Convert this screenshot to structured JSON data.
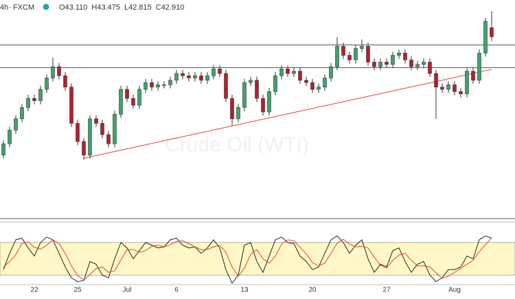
{
  "chart_data": [
    {
      "type": "candlestick",
      "interval": "4h",
      "source": "FXCM",
      "ohlc": [
        "O43.110",
        "H43.475",
        "L42.815",
        "C42.910"
      ],
      "watermark": "Crude Oil (WTI)",
      "up_color": "#3fa36d",
      "down_color": "#b3202e",
      "ylim": [
        38.9,
        43.72
      ],
      "categories": [
        null,
        null,
        null,
        null,
        null,
        "22",
        null,
        null,
        null,
        null,
        null,
        null,
        "25",
        null,
        null,
        null,
        null,
        null,
        null,
        null,
        "Jul",
        null,
        null,
        null,
        null,
        null,
        null,
        null,
        "6",
        null,
        null,
        null,
        null,
        null,
        null,
        null,
        null,
        null,
        null,
        "13",
        null,
        null,
        null,
        null,
        null,
        null,
        null,
        null,
        null,
        null,
        "20",
        null,
        null,
        null,
        null,
        null,
        null,
        null,
        null,
        null,
        null,
        null,
        "27",
        null,
        null,
        null,
        null,
        null,
        null,
        null,
        null,
        null,
        null,
        "Aug",
        null,
        null,
        null,
        null,
        null,
        null
      ],
      "open": [
        40.3,
        40.55,
        40.85,
        41.1,
        41.35,
        41.55,
        41.5,
        41.75,
        42.0,
        42.25,
        42.05,
        41.8,
        41.0,
        40.6,
        40.3,
        41.1,
        41.0,
        40.75,
        40.55,
        41.2,
        41.75,
        41.55,
        41.4,
        41.75,
        41.9,
        41.8,
        41.85,
        41.85,
        41.95,
        42.1,
        42.05,
        42.0,
        42.05,
        41.95,
        42.05,
        42.2,
        42.1,
        41.55,
        41.1,
        41.35,
        41.9,
        41.95,
        41.55,
        41.25,
        41.7,
        42.05,
        42.2,
        42.1,
        42.15,
        41.95,
        41.9,
        41.75,
        41.8,
        42.0,
        42.25,
        42.7,
        42.5,
        42.4,
        42.65,
        42.7,
        42.35,
        42.25,
        42.35,
        42.3,
        42.5,
        42.55,
        42.4,
        42.25,
        42.3,
        42.35,
        42.1,
        41.8,
        41.75,
        41.85,
        41.7,
        41.65,
        42.15,
        41.95,
        42.55,
        43.11
      ],
      "high": [
        40.63,
        40.93,
        41.18,
        41.43,
        41.63,
        41.63,
        41.83,
        42.08,
        42.45,
        42.33,
        42.13,
        41.88,
        41.08,
        40.68,
        41.18,
        41.18,
        41.08,
        40.83,
        41.28,
        41.83,
        41.83,
        41.63,
        41.83,
        41.98,
        41.98,
        41.93,
        41.93,
        42.03,
        42.18,
        42.18,
        42.13,
        42.13,
        42.13,
        42.13,
        42.28,
        42.28,
        42.18,
        41.63,
        41.43,
        41.98,
        42.03,
        42.03,
        41.63,
        41.78,
        42.13,
        42.28,
        42.28,
        42.23,
        42.23,
        42.03,
        41.98,
        41.88,
        42.08,
        42.33,
        42.9,
        42.78,
        42.58,
        42.73,
        42.85,
        42.78,
        42.43,
        42.43,
        42.43,
        42.58,
        42.63,
        42.63,
        42.48,
        42.38,
        42.43,
        42.43,
        42.18,
        41.88,
        41.93,
        41.93,
        41.78,
        42.23,
        42.23,
        42.63,
        43.33,
        43.475
      ],
      "low": [
        40.22,
        40.47,
        40.77,
        41.02,
        41.27,
        41.42,
        41.42,
        41.67,
        41.92,
        41.97,
        41.72,
        40.92,
        40.52,
        40.2,
        40.22,
        40.92,
        40.67,
        40.47,
        40.47,
        41.12,
        41.47,
        41.32,
        41.32,
        41.67,
        41.72,
        41.72,
        41.77,
        41.77,
        41.87,
        41.97,
        41.92,
        41.92,
        41.87,
        41.87,
        41.97,
        42.02,
        41.47,
        40.95,
        41.02,
        41.27,
        41.82,
        41.47,
        41.17,
        41.17,
        41.62,
        41.97,
        42.02,
        42.02,
        41.87,
        41.82,
        41.67,
        41.67,
        41.72,
        41.92,
        42.17,
        42.42,
        42.32,
        42.32,
        42.57,
        42.27,
        42.17,
        42.17,
        42.22,
        42.22,
        42.42,
        42.32,
        42.17,
        42.17,
        42.22,
        42.02,
        41.1,
        41.67,
        41.67,
        41.62,
        41.57,
        41.57,
        41.87,
        41.87,
        42.47,
        42.815
      ],
      "close": [
        40.55,
        40.85,
        41.1,
        41.35,
        41.55,
        41.5,
        41.75,
        42.0,
        42.25,
        42.05,
        41.8,
        41.0,
        40.6,
        40.3,
        41.1,
        41.0,
        40.75,
        40.55,
        41.2,
        41.75,
        41.55,
        41.4,
        41.75,
        41.9,
        41.8,
        41.85,
        41.85,
        41.95,
        42.1,
        42.05,
        42.0,
        42.05,
        41.95,
        42.05,
        42.2,
        42.1,
        41.55,
        41.1,
        41.35,
        41.9,
        41.95,
        41.55,
        41.25,
        41.7,
        42.05,
        42.2,
        42.1,
        42.15,
        41.95,
        41.9,
        41.75,
        41.8,
        42.0,
        42.25,
        42.7,
        42.5,
        42.4,
        42.65,
        42.7,
        42.35,
        42.25,
        42.35,
        42.3,
        42.5,
        42.55,
        42.4,
        42.25,
        42.3,
        42.35,
        42.1,
        41.8,
        41.75,
        41.85,
        41.7,
        41.65,
        42.15,
        41.95,
        42.55,
        43.25,
        42.91
      ],
      "hlines": [
        42.73,
        42.23
      ],
      "trendline": {
        "x": [
          13,
          79
        ],
        "y": [
          40.23,
          42.19
        ],
        "color": "#e53935"
      }
    },
    {
      "type": "stochastic",
      "ylim": [
        0,
        100
      ],
      "band": [
        20,
        80
      ],
      "band_color": "#fff8c6",
      "series": [
        {
          "color": "#222222",
          "values": [
            30,
            60,
            85,
            88,
            70,
            55,
            80,
            90,
            85,
            60,
            35,
            15,
            8,
            10,
            45,
            40,
            20,
            15,
            50,
            80,
            70,
            50,
            65,
            80,
            75,
            70,
            72,
            85,
            88,
            75,
            70,
            72,
            60,
            70,
            85,
            70,
            30,
            5,
            20,
            75,
            80,
            45,
            25,
            55,
            85,
            90,
            80,
            78,
            55,
            45,
            30,
            35,
            60,
            85,
            92,
            80,
            60,
            75,
            85,
            50,
            25,
            40,
            35,
            65,
            70,
            45,
            25,
            40,
            45,
            20,
            8,
            15,
            30,
            30,
            35,
            55,
            50,
            85,
            92,
            88
          ]
        },
        {
          "color": "#e0452b",
          "values": [
            35,
            45,
            58,
            78,
            81,
            71,
            68,
            75,
            85,
            78,
            60,
            37,
            19,
            11,
            21,
            32,
            35,
            25,
            28,
            48,
            67,
            67,
            62,
            65,
            73,
            75,
            72,
            76,
            82,
            83,
            78,
            72,
            67,
            67,
            72,
            75,
            62,
            35,
            18,
            33,
            58,
            67,
            50,
            42,
            55,
            77,
            85,
            83,
            71,
            59,
            43,
            37,
            42,
            60,
            79,
            86,
            77,
            72,
            73,
            70,
            53,
            38,
            33,
            47,
            57,
            60,
            47,
            37,
            37,
            35,
            24,
            14,
            18,
            25,
            32,
            40,
            47,
            63,
            76,
            88
          ]
        }
      ]
    }
  ]
}
